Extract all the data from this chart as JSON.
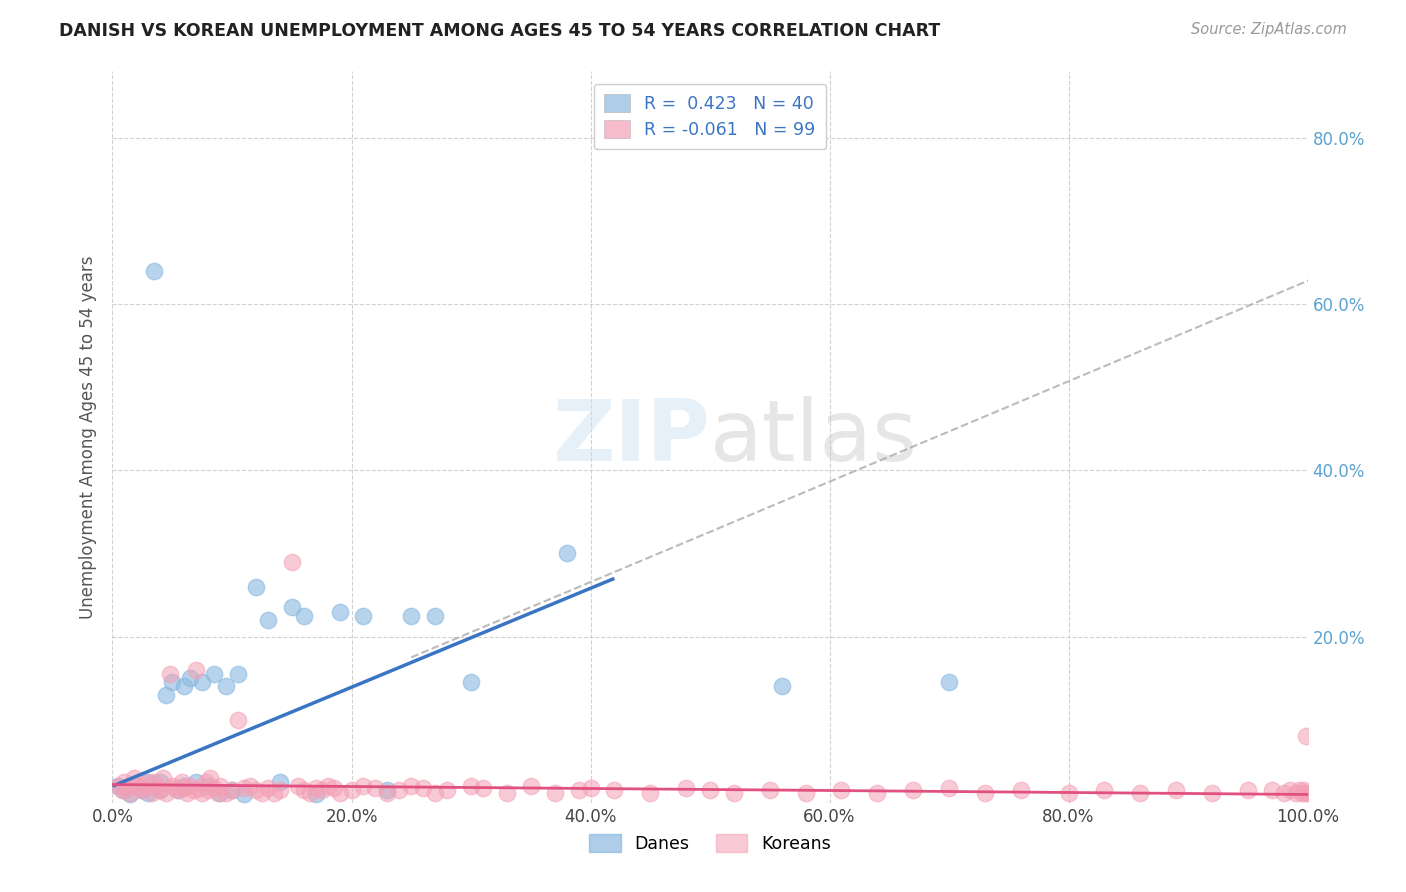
{
  "title": "DANISH VS KOREAN UNEMPLOYMENT AMONG AGES 45 TO 54 YEARS CORRELATION CHART",
  "source": "Source: ZipAtlas.com",
  "ylabel": "Unemployment Among Ages 45 to 54 years",
  "xlim": [
    0,
    1.0
  ],
  "ylim": [
    0,
    0.88
  ],
  "xticks": [
    0.0,
    0.2,
    0.4,
    0.6,
    0.8,
    1.0
  ],
  "xticklabels": [
    "0.0%",
    "20.0%",
    "40.0%",
    "60.0%",
    "80.0%",
    "100.0%"
  ],
  "ytick_vals": [
    0.0,
    0.2,
    0.4,
    0.6,
    0.8
  ],
  "yticklabels_right": [
    "",
    "20.0%",
    "40.0%",
    "60.0%",
    "80.0%"
  ],
  "dane_color": "#8ab8e0",
  "korean_color": "#f4a0b5",
  "dane_line_color": "#3a75c4",
  "korean_line_color": "#e05080",
  "dashed_line_color": "#aaaaaa",
  "background_color": "#ffffff",
  "grid_color": "#cccccc",
  "dane_scatter_x": [
    0.005,
    0.01,
    0.015,
    0.02,
    0.025,
    0.03,
    0.03,
    0.035,
    0.04,
    0.04,
    0.045,
    0.05,
    0.055,
    0.06,
    0.06,
    0.065,
    0.07,
    0.075,
    0.08,
    0.085,
    0.09,
    0.095,
    0.1,
    0.105,
    0.11,
    0.12,
    0.13,
    0.14,
    0.15,
    0.16,
    0.17,
    0.19,
    0.21,
    0.23,
    0.25,
    0.27,
    0.3,
    0.38,
    0.56,
    0.7
  ],
  "dane_scatter_y": [
    0.02,
    0.015,
    0.01,
    0.02,
    0.015,
    0.012,
    0.025,
    0.64,
    0.015,
    0.025,
    0.13,
    0.145,
    0.015,
    0.02,
    0.14,
    0.15,
    0.025,
    0.145,
    0.02,
    0.155,
    0.012,
    0.14,
    0.015,
    0.155,
    0.01,
    0.26,
    0.22,
    0.025,
    0.235,
    0.225,
    0.01,
    0.23,
    0.225,
    0.015,
    0.225,
    0.225,
    0.145,
    0.3,
    0.14,
    0.145
  ],
  "korean_scatter_x": [
    0.005,
    0.008,
    0.01,
    0.012,
    0.015,
    0.018,
    0.02,
    0.022,
    0.025,
    0.028,
    0.03,
    0.033,
    0.035,
    0.038,
    0.04,
    0.042,
    0.045,
    0.048,
    0.05,
    0.052,
    0.055,
    0.058,
    0.06,
    0.062,
    0.065,
    0.068,
    0.07,
    0.072,
    0.075,
    0.078,
    0.08,
    0.082,
    0.085,
    0.088,
    0.09,
    0.095,
    0.1,
    0.105,
    0.11,
    0.115,
    0.12,
    0.125,
    0.13,
    0.135,
    0.14,
    0.15,
    0.155,
    0.16,
    0.165,
    0.17,
    0.175,
    0.18,
    0.185,
    0.19,
    0.2,
    0.21,
    0.22,
    0.23,
    0.24,
    0.25,
    0.26,
    0.27,
    0.28,
    0.3,
    0.31,
    0.33,
    0.35,
    0.37,
    0.39,
    0.4,
    0.42,
    0.45,
    0.48,
    0.5,
    0.52,
    0.55,
    0.58,
    0.61,
    0.64,
    0.67,
    0.7,
    0.73,
    0.76,
    0.8,
    0.83,
    0.86,
    0.89,
    0.92,
    0.95,
    0.97,
    0.98,
    0.985,
    0.99,
    0.993,
    0.995,
    0.997,
    0.998,
    0.999,
    1.0
  ],
  "korean_scatter_y": [
    0.02,
    0.015,
    0.025,
    0.018,
    0.012,
    0.03,
    0.022,
    0.018,
    0.015,
    0.025,
    0.02,
    0.012,
    0.025,
    0.018,
    0.015,
    0.03,
    0.012,
    0.155,
    0.02,
    0.018,
    0.015,
    0.025,
    0.018,
    0.012,
    0.02,
    0.015,
    0.16,
    0.018,
    0.012,
    0.025,
    0.015,
    0.03,
    0.018,
    0.012,
    0.02,
    0.012,
    0.015,
    0.1,
    0.018,
    0.02,
    0.015,
    0.012,
    0.018,
    0.012,
    0.015,
    0.29,
    0.02,
    0.015,
    0.012,
    0.018,
    0.015,
    0.02,
    0.018,
    0.012,
    0.015,
    0.02,
    0.018,
    0.012,
    0.015,
    0.02,
    0.018,
    0.012,
    0.015,
    0.02,
    0.018,
    0.012,
    0.02,
    0.012,
    0.015,
    0.018,
    0.015,
    0.012,
    0.018,
    0.015,
    0.012,
    0.015,
    0.012,
    0.015,
    0.012,
    0.015,
    0.018,
    0.012,
    0.015,
    0.012,
    0.015,
    0.012,
    0.015,
    0.012,
    0.015,
    0.015,
    0.012,
    0.015,
    0.012,
    0.015,
    0.012,
    0.015,
    0.012,
    0.08,
    0.012
  ],
  "dane_line_x0": 0.0,
  "dane_line_x1": 0.42,
  "dane_line_y0": 0.02,
  "dane_line_y1": 0.27,
  "dashed_line_x0": 0.25,
  "dashed_line_x1": 1.02,
  "dashed_line_y0": 0.175,
  "dashed_line_y1": 0.64,
  "korean_line_x0": 0.0,
  "korean_line_x1": 1.0,
  "korean_line_y0": 0.022,
  "korean_line_y1": 0.01,
  "legend_dane_text1": "R =  0.423",
  "legend_dane_text2": "N = 40",
  "legend_korean_text1": "R = -0.061",
  "legend_korean_text2": "N = 99",
  "tick_color": "#5ba3d0"
}
